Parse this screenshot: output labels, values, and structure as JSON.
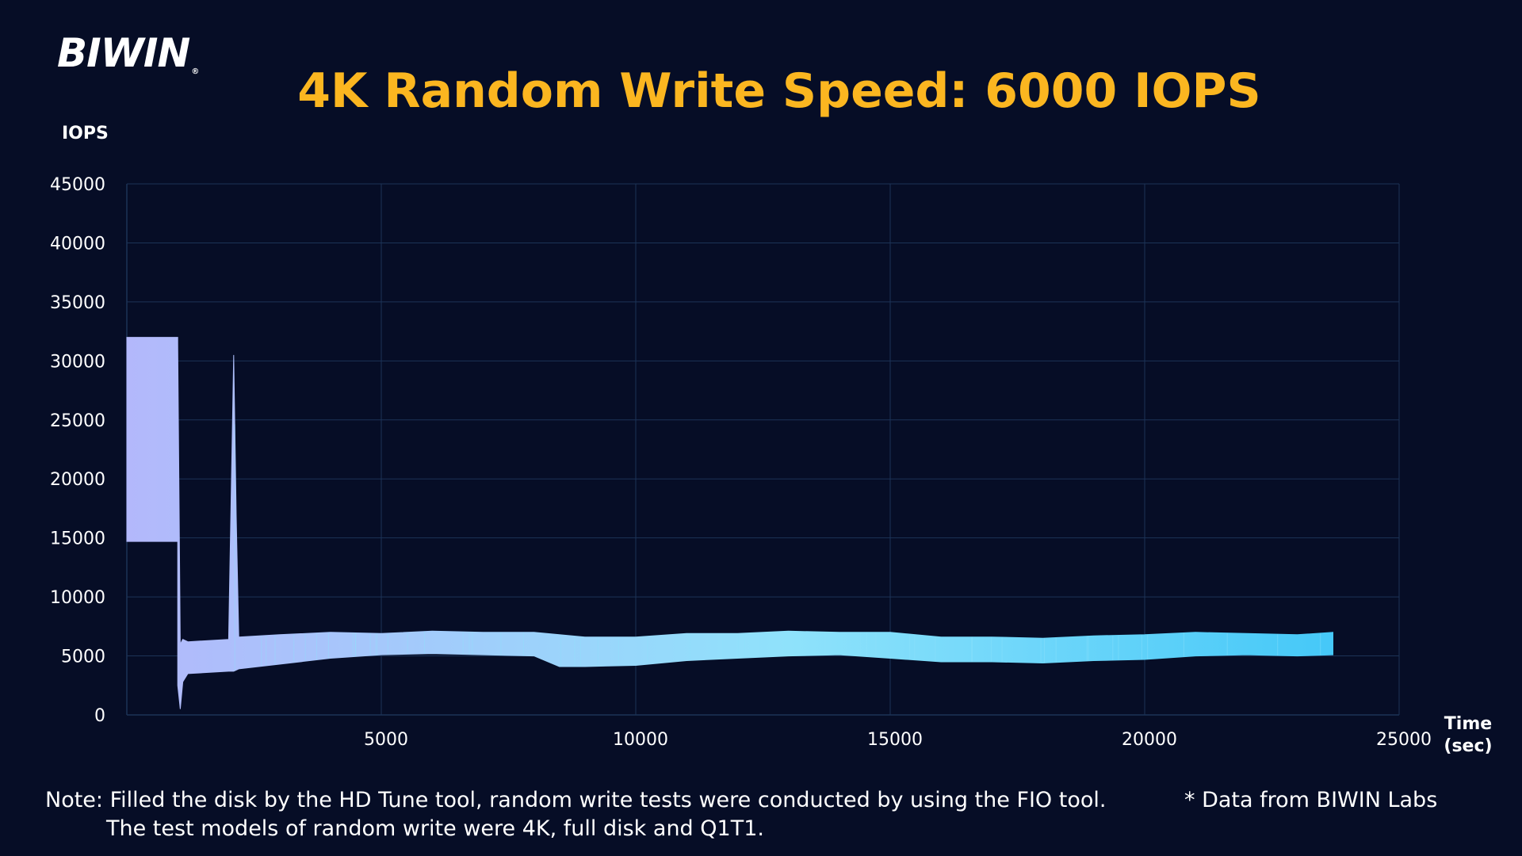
{
  "brand": {
    "logo_text": "BIWIN",
    "registered_mark": "®"
  },
  "footer": {
    "note_line1": "Note: Filled the disk by the HD Tune tool, random write tests were conducted by using the FIO tool.",
    "note_line2": "The test models of random write were 4K, full disk and Q1T1.",
    "source": "* Data from BIWIN Labs"
  },
  "colors": {
    "background": "#060d26",
    "title": "#fbb620",
    "grid": "#1c3357",
    "series_start": "#b3b8fb",
    "series_mid": "#8fe2fb",
    "series_end": "#45c8f8"
  },
  "chart_data": {
    "type": "line",
    "title": "4K Random Write Speed: 6000 IOPS",
    "ylabel": "IOPS",
    "xlabel": "Time (sec)",
    "xlabel_lines": [
      "Time",
      "(sec)"
    ],
    "xlim": [
      0,
      25000
    ],
    "ylim": [
      0,
      45000
    ],
    "x_ticks": [
      5000,
      10000,
      15000,
      20000,
      25000
    ],
    "y_ticks": [
      0,
      5000,
      10000,
      15000,
      20000,
      25000,
      30000,
      35000,
      40000,
      45000
    ],
    "grid": true,
    "legend": "none",
    "series": [
      {
        "x": [
          0,
          1000,
          1000,
          1050,
          1100,
          1200,
          2000,
          2100,
          2150,
          2200,
          3000,
          4000,
          5000,
          6000,
          7000,
          8000,
          8500,
          9000,
          10000,
          11000,
          12000,
          13000,
          14000,
          15000,
          16000,
          17000,
          18000,
          19000,
          20000,
          21000,
          22000,
          23000,
          23700
        ],
        "y_high": [
          32000,
          32000,
          31500,
          6000,
          6400,
          6200,
          6400,
          30500,
          16800,
          6600,
          6800,
          7000,
          6900,
          7100,
          7000,
          7000,
          6800,
          6600,
          6600,
          6900,
          6900,
          7100,
          7000,
          7000,
          6600,
          6600,
          6500,
          6700,
          6800,
          7000,
          6900,
          6800,
          7000
        ],
        "y_low": [
          14700,
          14700,
          2500,
          500,
          2800,
          3500,
          3700,
          3700,
          3800,
          3900,
          4300,
          4800,
          5100,
          5200,
          5100,
          5000,
          4100,
          4100,
          4200,
          4600,
          4800,
          5000,
          5100,
          4800,
          4500,
          4500,
          4400,
          4600,
          4700,
          5000,
          5100,
          5000,
          5100
        ]
      }
    ]
  }
}
